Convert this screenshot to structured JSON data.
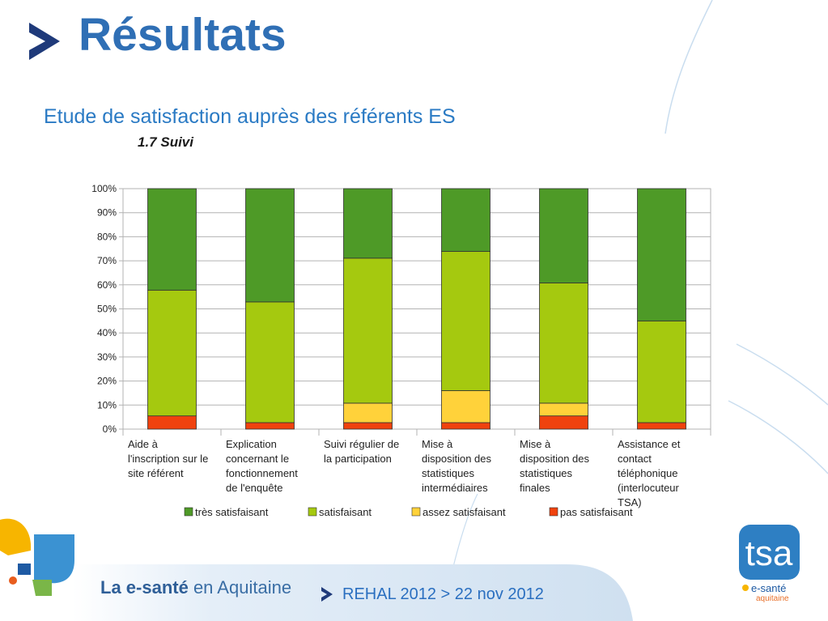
{
  "slide": {
    "title": "Résultats",
    "subtitle": "Etude de satisfaction auprès des  référents ES",
    "section": "1.7  Suivi"
  },
  "footer": {
    "brand_bold": "La e-santé",
    "brand_rest": " en Aquitaine",
    "event": "REHAL 2012 > 22 nov 2012",
    "tsa_logo_text": "tsa",
    "tsa_logo_sub1": "e-santé",
    "tsa_logo_sub2": "aquitaine"
  },
  "colors": {
    "title": "#2f6fb5",
    "tres_satisfaisant": "#4e9a27",
    "satisfaisant": "#a5c90f",
    "assez_satisfaisant": "#ffd23a",
    "pas_satisfaisant": "#f0420e"
  },
  "chart_data": {
    "type": "bar",
    "stacked": true,
    "percent": true,
    "title": "",
    "xlabel": "",
    "ylabel": "",
    "ylim": [
      0,
      100
    ],
    "yticks": [
      "0%",
      "10%",
      "20%",
      "30%",
      "40%",
      "50%",
      "60%",
      "70%",
      "80%",
      "90%",
      "100%"
    ],
    "grid": true,
    "legend": "bottom",
    "categories": [
      [
        "Aide à",
        "l'inscription sur le",
        "site référent"
      ],
      [
        "Explication",
        "concernant le",
        "fonctionnement",
        "de l'enquête"
      ],
      [
        "Suivi régulier de",
        "la participation"
      ],
      [
        "Mise à",
        "disposition des",
        "statistiques",
        "intermédiaires"
      ],
      [
        "Mise à",
        "disposition des",
        "statistiques",
        "finales"
      ],
      [
        "Assistance et",
        "contact",
        "téléphonique",
        "(interlocuteur",
        "TSA)"
      ]
    ],
    "series": [
      {
        "name": "pas satisfaisant",
        "color": "#f0420e",
        "values": [
          5.5,
          2.7,
          2.7,
          2.7,
          5.5,
          2.7
        ]
      },
      {
        "name": "assez satisfaisant",
        "color": "#ffd23a",
        "values": [
          0,
          0,
          8.1,
          13.3,
          5.3,
          0
        ]
      },
      {
        "name": "satisfaisant",
        "color": "#a5c90f",
        "values": [
          52.3,
          50.2,
          60.3,
          57.9,
          50.0,
          42.3
        ]
      },
      {
        "name": "très satisfaisant",
        "color": "#4e9a27",
        "values": [
          42.2,
          47.1,
          28.9,
          26.1,
          39.2,
          55.0
        ]
      }
    ],
    "legend_order": [
      "très satisfaisant",
      "satisfaisant",
      "assez satisfaisant",
      "pas satisfaisant"
    ]
  }
}
